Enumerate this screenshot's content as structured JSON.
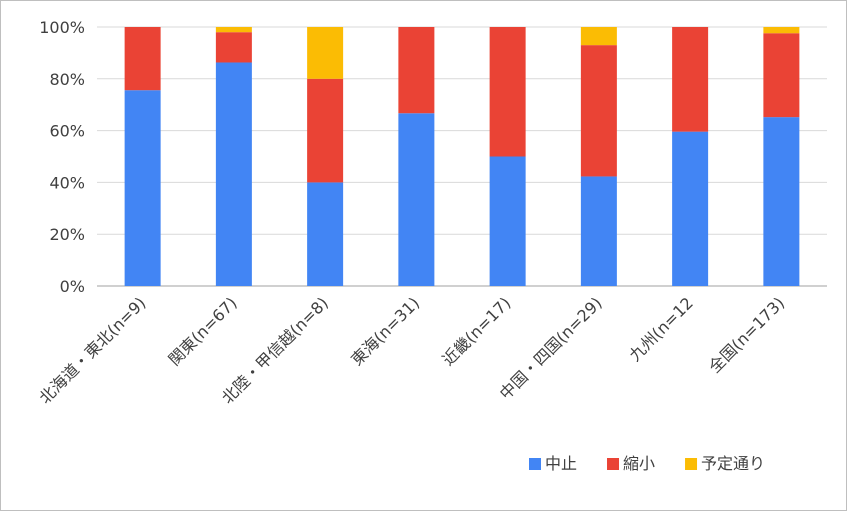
{
  "chart_data": {
    "type": "bar",
    "stacked": true,
    "categories": [
      "北海道・東北(n=9)",
      "関東(n=67)",
      "北陸・甲信越(n=8)",
      "東海(n=31)",
      "近畿(n=17)",
      "中国・四国(n=29)",
      "九州(n=12",
      "全国(n=173)"
    ],
    "series": [
      {
        "name": "中止",
        "color": "#4285f4",
        "values": [
          75.6,
          86.3,
          40.0,
          66.7,
          50.0,
          42.3,
          59.6,
          65.2
        ]
      },
      {
        "name": "縮小",
        "color": "#ea4335",
        "values": [
          24.4,
          11.7,
          40.0,
          33.3,
          50.0,
          50.7,
          40.4,
          32.4
        ]
      },
      {
        "name": "予定通り",
        "color": "#fbbc04",
        "values": [
          0.0,
          2.0,
          20.0,
          0.0,
          0.0,
          7.0,
          0.0,
          2.4
        ]
      }
    ],
    "ylim": [
      0,
      100
    ],
    "yticks": [
      "0%",
      "20%",
      "40%",
      "60%",
      "80%",
      "100%"
    ],
    "grid": true,
    "legend_position": "bottom-right",
    "title": "",
    "xlabel": "",
    "ylabel": ""
  }
}
